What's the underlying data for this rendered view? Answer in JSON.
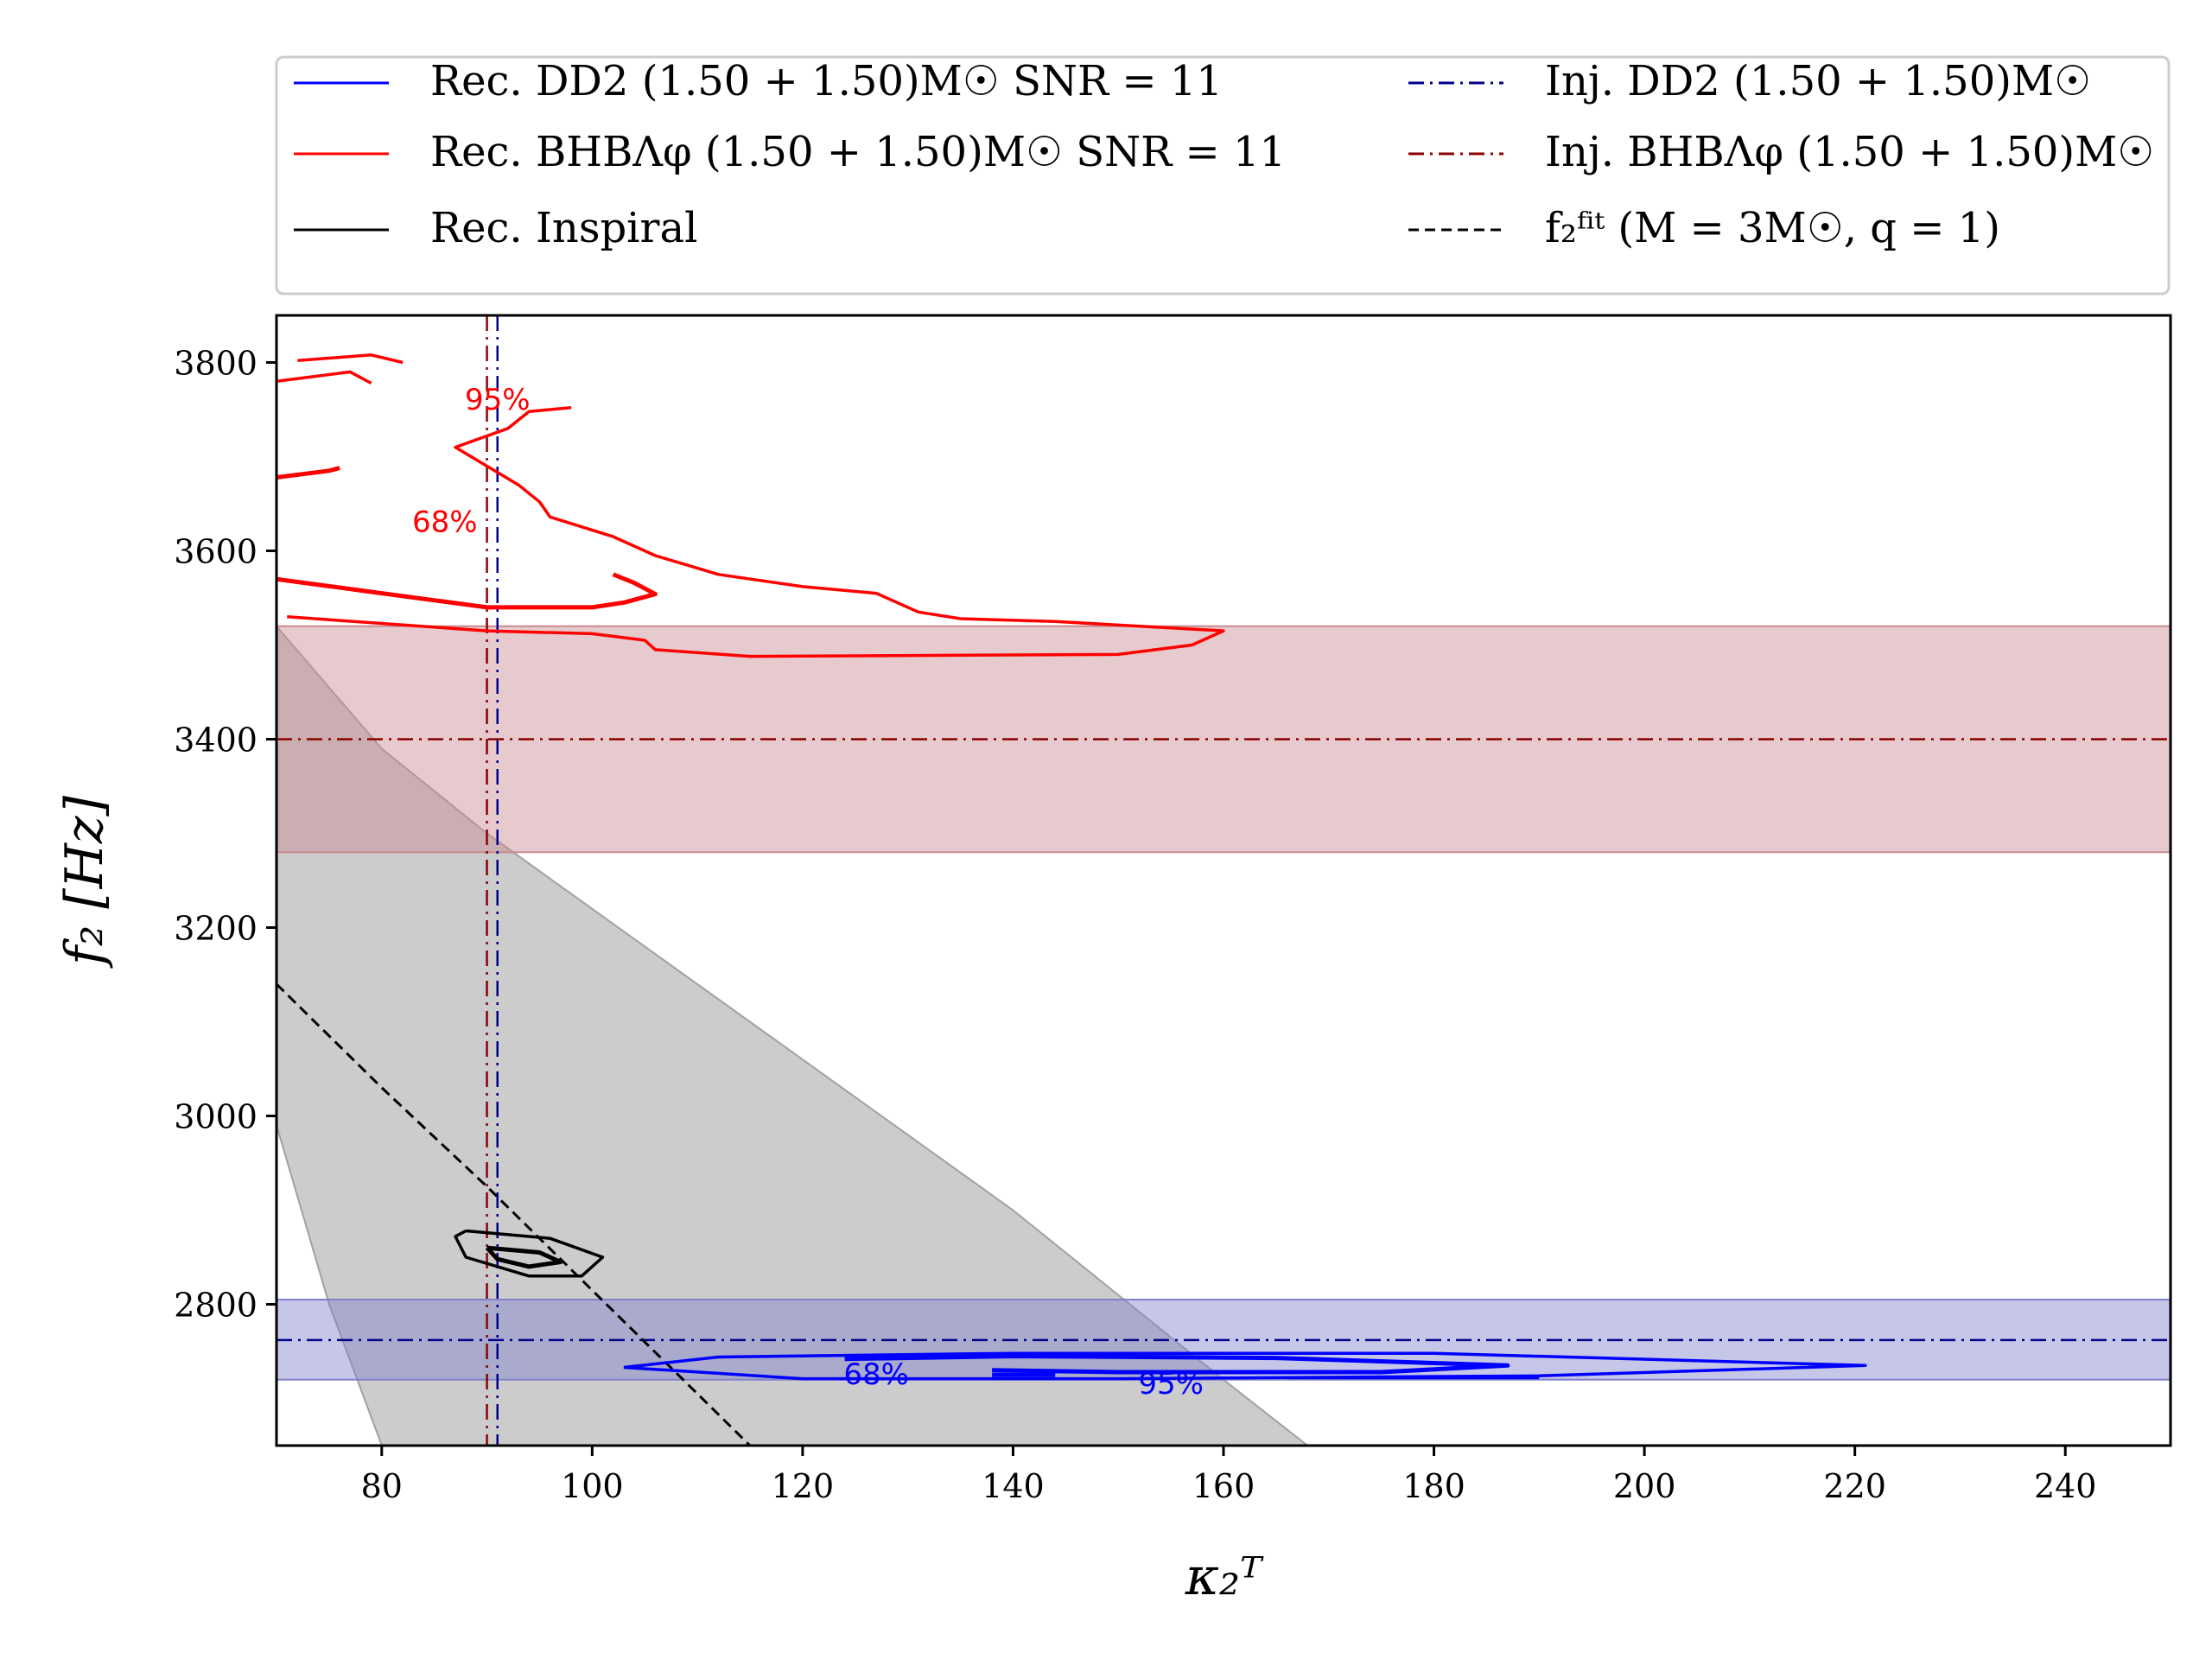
{
  "chart_data": {
    "type": "contour",
    "xlabel": "κ₂ᵀ",
    "ylabel": "f₂ [Hz]",
    "xlim": [
      70,
      250
    ],
    "ylim": [
      2650,
      3850
    ],
    "xticks": [
      80,
      100,
      120,
      140,
      160,
      180,
      200,
      220,
      240
    ],
    "yticks": [
      2800,
      3000,
      3200,
      3400,
      3600,
      3800
    ],
    "colors": {
      "dd2": "#0000ff",
      "bhb": "#ff0000",
      "inspiral": "#000000",
      "dd2_inj": "#00008b",
      "bhb_inj": "#8b0000",
      "dd2_band": "#8080cc",
      "bhb_band": "#c98a90",
      "fit_band": "#999999"
    },
    "legend": {
      "placement": "top",
      "entries": [
        {
          "key": "rec_dd2",
          "label": "Rec. DD2 (1.50 + 1.50)M☉ SNR = 11",
          "style": "solid",
          "color": "#0000ff"
        },
        {
          "key": "rec_bhb",
          "label": "Rec. BHBΛφ (1.50 + 1.50)M☉ SNR = 11",
          "style": "solid",
          "color": "#ff0000"
        },
        {
          "key": "rec_inspiral",
          "label": "Rec. Inspiral",
          "style": "solid",
          "color": "#000000"
        },
        {
          "key": "inj_dd2",
          "label": "Inj. DD2 (1.50 + 1.50)M☉",
          "style": "dashdot",
          "color": "#00008b"
        },
        {
          "key": "inj_bhb",
          "label": "Inj. BHBΛφ (1.50 + 1.50)M☉",
          "style": "dashdot",
          "color": "#8b0000"
        },
        {
          "key": "fit",
          "label": "f₂ᶠⁱᵗ (M = 3M☉, q = 1)",
          "style": "dashed",
          "color": "#000000"
        }
      ]
    },
    "injections": {
      "dd2": {
        "kappa": 91,
        "f2": 2762,
        "band": [
          2720,
          2805
        ]
      },
      "bhb": {
        "kappa": 90,
        "f2": 3400,
        "band": [
          3280,
          3520
        ]
      }
    },
    "fit_curve": [
      [
        70,
        3140
      ],
      [
        80,
        3030
      ],
      [
        90,
        2925
      ],
      [
        100,
        2815
      ],
      [
        110,
        2705
      ],
      [
        115,
        2650
      ]
    ],
    "fit_band_upper": [
      [
        70,
        3520
      ],
      [
        80,
        3390
      ],
      [
        90,
        3300
      ],
      [
        100,
        3220
      ],
      [
        110,
        3140
      ],
      [
        120,
        3060
      ],
      [
        130,
        2980
      ],
      [
        140,
        2900
      ],
      [
        150,
        2810
      ],
      [
        160,
        2720
      ],
      [
        168,
        2650
      ]
    ],
    "fit_band_lower": [
      [
        70,
        2990
      ],
      [
        75,
        2800
      ],
      [
        80,
        2650
      ]
    ],
    "contours": [
      {
        "series": "dd2",
        "level": "95%",
        "points": [
          [
            103,
            2733
          ],
          [
            112,
            2744
          ],
          [
            140,
            2748
          ],
          [
            180,
            2748
          ],
          [
            221,
            2735
          ],
          [
            190,
            2724
          ],
          [
            150,
            2721
          ],
          [
            120,
            2721
          ],
          [
            103,
            2733
          ]
        ]
      },
      {
        "series": "dd2",
        "level": "68%",
        "points": [
          [
            124,
            2742
          ],
          [
            140,
            2745
          ],
          [
            165,
            2743
          ],
          [
            187,
            2735
          ],
          [
            175,
            2728
          ],
          [
            150,
            2728
          ],
          [
            138,
            2730
          ]
        ]
      },
      {
        "series": "dd2",
        "level": "68%",
        "points": [
          [
            138,
            2725
          ],
          [
            144,
            2725
          ]
        ]
      },
      {
        "series": "dd2",
        "level": "95%",
        "points": [
          [
            166,
            2722
          ],
          [
            190,
            2722
          ]
        ]
      },
      {
        "series": "bhb",
        "level": "95%",
        "points": [
          [
            71,
            3530
          ],
          [
            90,
            3515
          ],
          [
            100,
            3512
          ],
          [
            105,
            3505
          ],
          [
            106,
            3495
          ],
          [
            115,
            3488
          ],
          [
            150,
            3490
          ],
          [
            157,
            3500
          ],
          [
            160,
            3515
          ],
          [
            144,
            3525
          ],
          [
            135,
            3528
          ],
          [
            131,
            3535
          ],
          [
            127,
            3555
          ],
          [
            120,
            3562
          ],
          [
            112,
            3575
          ],
          [
            106,
            3595
          ],
          [
            102,
            3615
          ],
          [
            96,
            3636
          ],
          [
            95,
            3652
          ],
          [
            93,
            3670
          ],
          [
            87,
            3710
          ],
          [
            92,
            3730
          ],
          [
            94,
            3748
          ],
          [
            98,
            3752
          ]
        ]
      },
      {
        "series": "bhb",
        "level": "95%",
        "points": [
          [
            70,
            3780
          ],
          [
            77,
            3790
          ],
          [
            79,
            3778
          ]
        ]
      },
      {
        "series": "bhb",
        "level": "95%",
        "points": [
          [
            72,
            3802
          ],
          [
            79,
            3808
          ],
          [
            82,
            3800
          ]
        ]
      },
      {
        "series": "bhb",
        "level": "68%",
        "points": [
          [
            70,
            3570
          ],
          [
            80,
            3555
          ],
          [
            90,
            3540
          ],
          [
            100,
            3540
          ],
          [
            103,
            3545
          ],
          [
            106,
            3554
          ],
          [
            104,
            3566
          ],
          [
            102,
            3575
          ]
        ]
      },
      {
        "series": "bhb",
        "level": "68%",
        "points": [
          [
            70,
            3678
          ],
          [
            75,
            3685
          ],
          [
            76,
            3688
          ]
        ]
      },
      {
        "series": "inspiral",
        "level": "95%",
        "points": [
          [
            88,
            2878
          ],
          [
            96,
            2870
          ],
          [
            101,
            2850
          ],
          [
            99,
            2830
          ],
          [
            94,
            2830
          ],
          [
            88,
            2850
          ],
          [
            87,
            2872
          ],
          [
            88,
            2878
          ]
        ]
      },
      {
        "series": "inspiral",
        "level": "68%",
        "points": [
          [
            90,
            2860
          ],
          [
            95,
            2855
          ],
          [
            97,
            2845
          ],
          [
            94,
            2840
          ],
          [
            91,
            2848
          ],
          [
            90,
            2860
          ]
        ]
      }
    ],
    "annotations": [
      {
        "text": "95%",
        "series": "bhb",
        "x": 91,
        "y": 3750
      },
      {
        "text": "68%",
        "series": "bhb",
        "x": 86,
        "y": 3620
      },
      {
        "text": "68%",
        "series": "dd2",
        "x": 127,
        "y": 2715
      },
      {
        "text": "95%",
        "series": "dd2",
        "x": 155,
        "y": 2705
      }
    ]
  }
}
